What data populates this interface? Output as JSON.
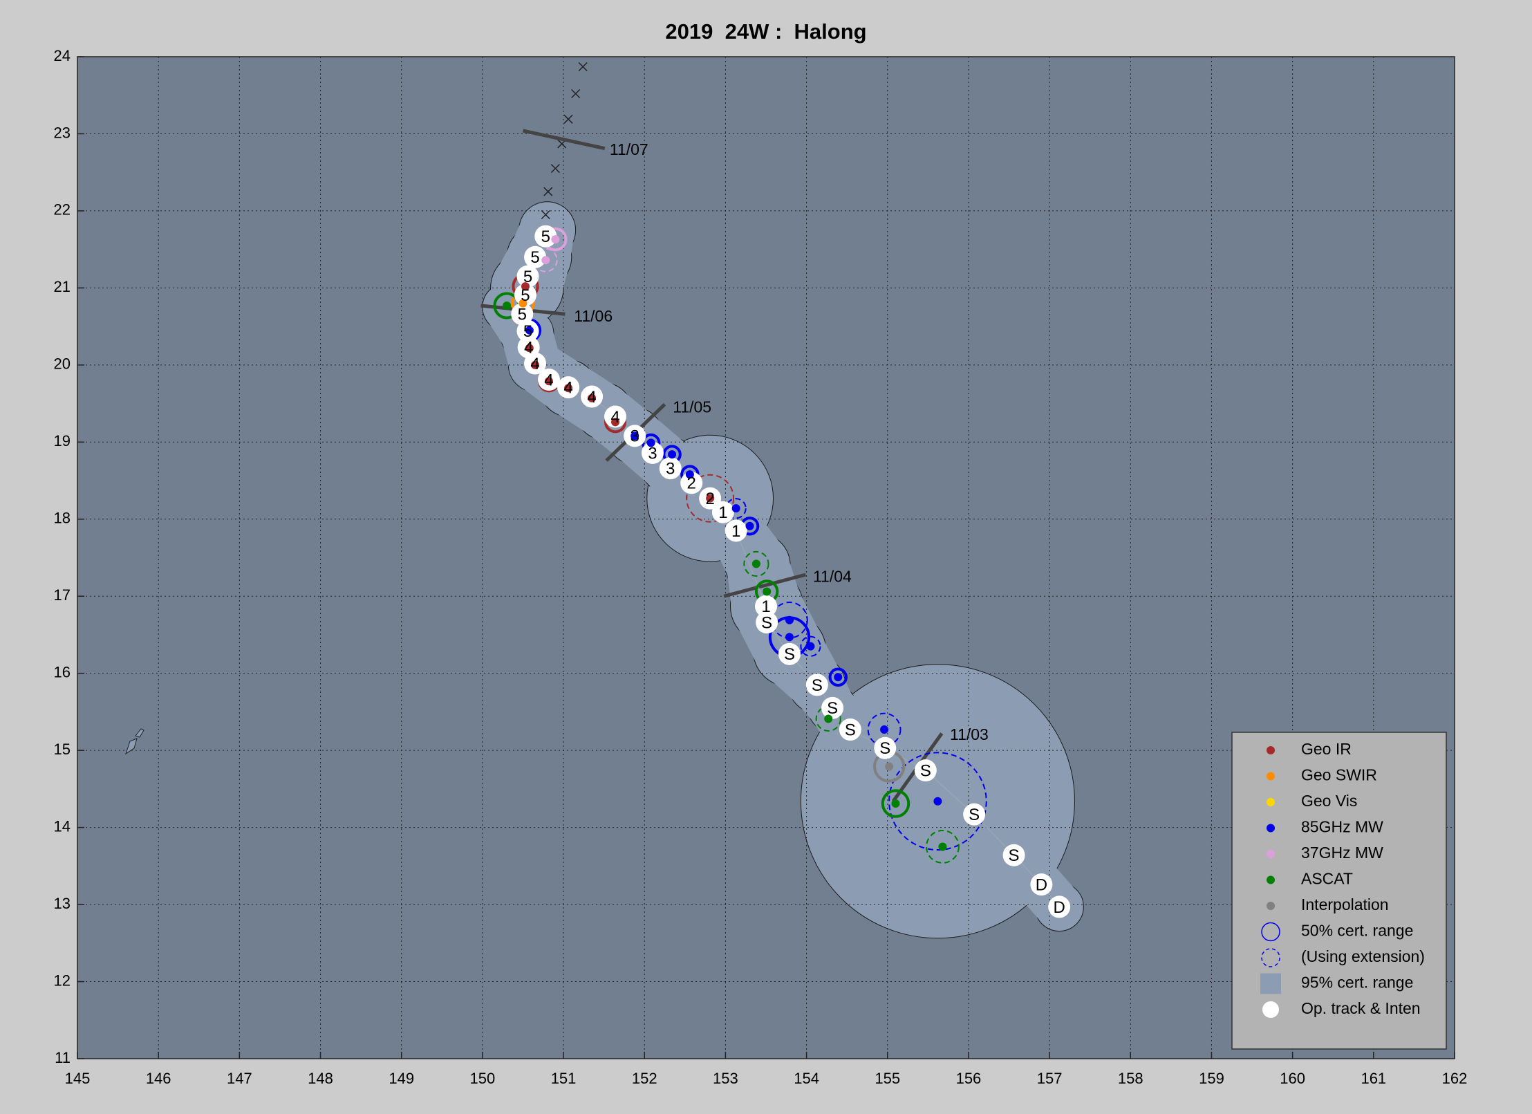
{
  "chart_data": {
    "type": "track-map",
    "title": "2019  24W :  Halong",
    "xlim": [
      145,
      162
    ],
    "ylim": [
      11,
      24
    ],
    "xticks": [
      145,
      146,
      147,
      148,
      149,
      150,
      151,
      152,
      153,
      154,
      155,
      156,
      157,
      158,
      159,
      160,
      161,
      162
    ],
    "yticks": [
      11,
      12,
      13,
      14,
      15,
      16,
      17,
      18,
      19,
      20,
      21,
      22,
      23,
      24
    ],
    "grid": true,
    "legend": "lower right",
    "track": {
      "color": "#ffffff",
      "lon": [
        157.12,
        156.9,
        156.56,
        156.07,
        155.47,
        154.97,
        154.54,
        154.32,
        154.13,
        153.79,
        153.51,
        153.5,
        153.13,
        152.97,
        152.81,
        152.58,
        152.32,
        152.1,
        151.88,
        151.64,
        151.35,
        151.06,
        150.82,
        150.65,
        150.57,
        150.56,
        150.49,
        150.53,
        150.56,
        150.65,
        150.78
      ],
      "lat": [
        12.97,
        13.26,
        13.64,
        14.17,
        14.74,
        15.03,
        15.27,
        15.55,
        15.85,
        16.25,
        16.66,
        16.87,
        17.85,
        18.09,
        18.27,
        18.47,
        18.66,
        18.86,
        19.08,
        19.33,
        19.59,
        19.71,
        19.81,
        20.02,
        20.23,
        20.44,
        20.66,
        20.91,
        21.15,
        21.4,
        21.67
      ],
      "labels": [
        "D",
        "D",
        "S",
        "S",
        "S",
        "S",
        "S",
        "S",
        "S",
        "S",
        "S",
        "1",
        "1",
        "1",
        "2",
        "2",
        "3",
        "3",
        "3",
        "4",
        "4",
        "4",
        "4",
        "4",
        "4",
        "5",
        "5",
        "5",
        "5",
        "5",
        "5"
      ]
    },
    "forecast": {
      "lon": [
        150.78,
        150.81,
        150.9,
        150.98,
        151.06,
        151.15,
        151.24
      ],
      "lat": [
        21.95,
        22.25,
        22.55,
        22.87,
        23.19,
        23.52,
        23.87
      ]
    },
    "range95": {
      "name": "95% cert. range",
      "color": "#8c9cb2",
      "lon": [
        157.12,
        156.56,
        155.62,
        154.54,
        154.32,
        154.13,
        153.79,
        153.51,
        153.4,
        153.13,
        152.81,
        152.3,
        151.88,
        151.5,
        151.06,
        150.65,
        150.55,
        150.3,
        150.55,
        150.7,
        150.8
      ],
      "lat": [
        12.97,
        13.64,
        14.34,
        15.27,
        15.55,
        15.85,
        16.3,
        16.87,
        17.4,
        17.85,
        18.27,
        18.7,
        19.08,
        19.4,
        19.7,
        20.0,
        20.4,
        20.75,
        21.0,
        21.4,
        21.75
      ],
      "r": [
        0.3,
        0.3,
        1.69,
        0.35,
        0.3,
        0.35,
        0.45,
        0.45,
        0.4,
        0.35,
        0.78,
        0.35,
        0.35,
        0.35,
        0.35,
        0.33,
        0.33,
        0.3,
        0.45,
        0.4,
        0.35
      ]
    },
    "series": [
      {
        "name": "Geo IR",
        "color": "#a52a2a",
        "lon": [
          152.81,
          151.64,
          151.35,
          151.06,
          150.82,
          150.65,
          150.58,
          150.53
        ],
        "lat": [
          18.27,
          19.26,
          19.57,
          19.7,
          19.79,
          20.0,
          20.22,
          21.02
        ],
        "radius": [
          0.29,
          0.12,
          0.1,
          0.1,
          0.12,
          0.1,
          0.1,
          0.15
        ],
        "dashed": [
          true,
          false,
          false,
          false,
          false,
          false,
          false,
          false
        ]
      },
      {
        "name": "Geo SWIR",
        "color": "#ff8c00",
        "lon": [
          150.5
        ],
        "lat": [
          20.8
        ],
        "radius": [
          0.13
        ],
        "dashed": [
          false
        ]
      },
      {
        "name": "Geo Vis",
        "color": "#ffd700",
        "lon": [],
        "lat": [],
        "radius": [],
        "dashed": []
      },
      {
        "name": "85GHz MW",
        "color": "#0000ee",
        "lon": [
          150.58,
          151.88,
          152.08,
          152.34,
          152.56,
          153.13,
          153.3,
          153.79,
          153.79,
          154.05,
          154.39,
          154.96,
          155.62
        ],
        "lat": [
          20.45,
          19.08,
          18.99,
          18.84,
          18.58,
          18.14,
          17.91,
          16.69,
          16.47,
          16.35,
          15.95,
          15.27,
          14.34
        ],
        "radius": [
          0.13,
          0.1,
          0.1,
          0.1,
          0.1,
          0.12,
          0.1,
          0.22,
          0.24,
          0.12,
          0.1,
          0.2,
          0.6
        ],
        "dashed": [
          false,
          false,
          false,
          false,
          false,
          true,
          false,
          true,
          false,
          true,
          false,
          true,
          true
        ]
      },
      {
        "name": "37GHz MW",
        "color": "#dda0dd",
        "lon": [
          150.9,
          150.78
        ],
        "lat": [
          21.63,
          21.36
        ],
        "radius": [
          0.13,
          0.14
        ],
        "dashed": [
          false,
          true
        ]
      },
      {
        "name": "ASCAT",
        "color": "#008000",
        "lon": [
          150.3,
          153.38,
          153.51,
          154.27,
          155.1,
          155.68
        ],
        "lat": [
          20.77,
          17.42,
          17.06,
          15.41,
          14.31,
          13.75
        ],
        "radius": [
          0.15,
          0.15,
          0.13,
          0.15,
          0.16,
          0.2
        ],
        "dashed": [
          false,
          true,
          false,
          true,
          false,
          true
        ]
      },
      {
        "name": "Interpolation",
        "color": "#808080",
        "lon": [
          155.02
        ],
        "lat": [
          14.79
        ],
        "radius": [
          0.18
        ],
        "dashed": [
          false
        ]
      }
    ],
    "dates": [
      {
        "label": "11/07",
        "lon": 151.57,
        "lat": 22.78,
        "bar_lon": [
          150.5,
          151.51
        ],
        "bar_lat": [
          23.04,
          22.81
        ]
      },
      {
        "label": "11/06",
        "lon": 151.13,
        "lat": 20.62,
        "bar_lon": [
          149.98,
          151.02
        ],
        "bar_lat": [
          20.77,
          20.66
        ]
      },
      {
        "label": "11/05",
        "lon": 152.35,
        "lat": 19.44,
        "bar_lon": [
          151.53,
          152.25
        ],
        "bar_lat": [
          18.76,
          19.49
        ]
      },
      {
        "label": "11/04",
        "lon": 154.08,
        "lat": 17.24,
        "bar_lon": [
          152.98,
          153.99
        ],
        "bar_lat": [
          17.0,
          17.28
        ]
      },
      {
        "label": "11/03",
        "lon": 155.77,
        "lat": 15.19,
        "bar_lon": [
          155.07,
          155.67
        ],
        "bar_lat": [
          14.34,
          15.22
        ]
      }
    ],
    "legend_extra": [
      "50% cert. range",
      "(Using extension)",
      "Op. track & Inten"
    ]
  }
}
